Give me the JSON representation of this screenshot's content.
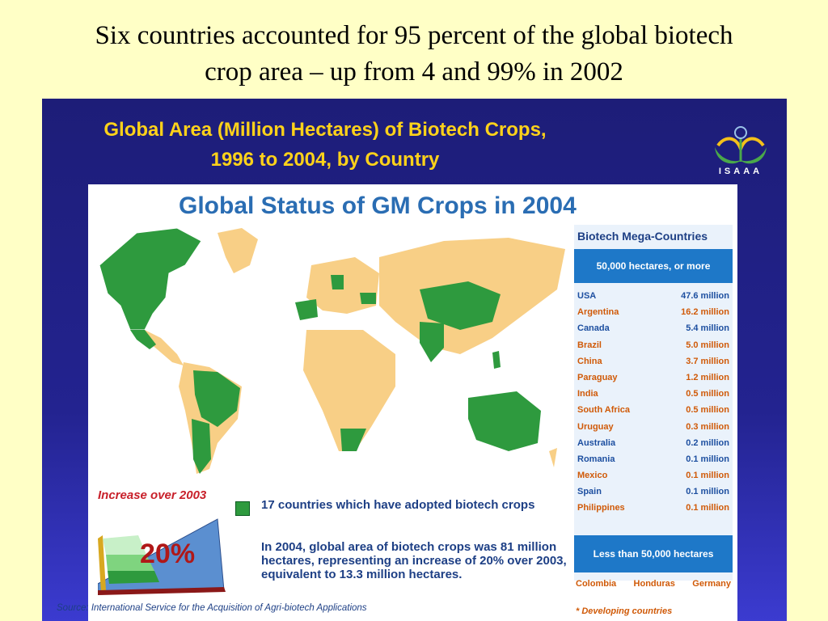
{
  "slide": {
    "title_line1": "Six countries accounted for 95 percent of the global biotech",
    "title_line2": "crop area – up from 4 and 99% in 2002"
  },
  "panel": {
    "title_line1": "Global Area (Million Hectares) of Biotech Crops,",
    "title_line2": "1996 to 2004, by Country",
    "logo_text": "ISAAA",
    "source": "Source: International Service for the Acquisition of Agri-biotech Applications"
  },
  "map": {
    "heading": "Global Status of GM Crops in 2004",
    "mega": {
      "header": "Biotech Mega-Countries",
      "band": "50,000 hectares, or more",
      "rows": [
        {
          "country": "USA",
          "value": "47.6 million",
          "developing": false
        },
        {
          "country": "Argentina",
          "value": "16.2 million",
          "developing": true
        },
        {
          "country": "Canada",
          "value": "5.4 million",
          "developing": false
        },
        {
          "country": "Brazil",
          "value": "5.0 million",
          "developing": true
        },
        {
          "country": "China",
          "value": "3.7 million",
          "developing": true
        },
        {
          "country": "Paraguay",
          "value": "1.2 million",
          "developing": true
        },
        {
          "country": "India",
          "value": "0.5 million",
          "developing": true
        },
        {
          "country": "South Africa",
          "value": "0.5 million",
          "developing": true
        },
        {
          "country": "Uruguay",
          "value": "0.3 million",
          "developing": true
        },
        {
          "country": "Australia",
          "value": "0.2 million",
          "developing": false
        },
        {
          "country": "Romania",
          "value": "0.1 million",
          "developing": false
        },
        {
          "country": "Mexico",
          "value": "0.1 million",
          "developing": true
        },
        {
          "country": "Spain",
          "value": "0.1 million",
          "developing": false
        },
        {
          "country": "Philippines",
          "value": "0.1 million",
          "developing": true
        }
      ]
    },
    "small": {
      "band": "Less than 50,000 hectares",
      "countries": [
        "Colombia",
        "Honduras",
        "Germany"
      ],
      "note": "* Developing countries"
    },
    "increase": {
      "title": "Increase over 2003",
      "value": "20%"
    },
    "legend_text": "17 countries which have adopted biotech crops",
    "paragraph": "In 2004, global area of biotech crops was 81 million hectares, representing an increase of 20% over 2003, equivalent to 13.3 million hectares.",
    "colors": {
      "adopted": "#2e9a3e",
      "non_adopted": "#f8cf86",
      "heading": "#2a6db3",
      "band": "#1e78c8",
      "developing": "#d05a08"
    }
  }
}
